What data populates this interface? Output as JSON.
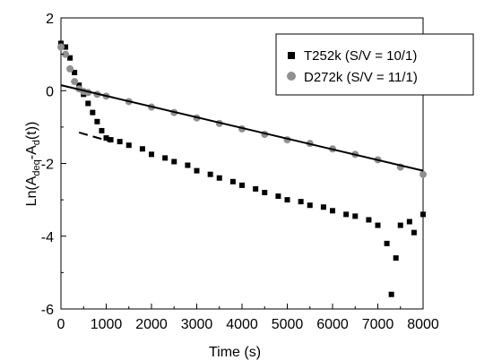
{
  "chart_data": {
    "type": "scatter",
    "xlabel": "Time (s)",
    "ylabel": {
      "prefix": "Ln(A",
      "sub1": "deq",
      "mid": "-A",
      "sub2": "d",
      "suffix": "(t))"
    },
    "xlim": [
      0,
      8000
    ],
    "ylim": [
      -6,
      2
    ],
    "x_ticks": [
      "0",
      "1000",
      "2000",
      "3000",
      "4000",
      "5000",
      "6000",
      "7000",
      "8000"
    ],
    "y_ticks": [
      "-6",
      "-4",
      "-2",
      "0",
      "2"
    ],
    "grid": false,
    "legend_position": "top-right",
    "series": [
      {
        "name": "T252k (S/V = 10/1)",
        "color": "#000000",
        "marker": "square",
        "x": [
          0,
          100,
          200,
          300,
          400,
          500,
          600,
          700,
          800,
          900,
          1000,
          1100,
          1300,
          1500,
          1800,
          2000,
          2300,
          2500,
          2800,
          3000,
          3300,
          3500,
          3800,
          4000,
          4300,
          4500,
          4800,
          5000,
          5300,
          5500,
          5800,
          6000,
          6300,
          6500,
          6800,
          7000,
          7200,
          7300,
          7400,
          7500,
          7700,
          7800,
          8000
        ],
        "y": [
          1.3,
          1.2,
          0.9,
          0.5,
          0.15,
          -0.1,
          -0.35,
          -0.6,
          -0.85,
          -1.1,
          -1.3,
          -1.35,
          -1.4,
          -1.5,
          -1.6,
          -1.75,
          -1.85,
          -1.95,
          -2.05,
          -2.2,
          -2.3,
          -2.4,
          -2.5,
          -2.6,
          -2.7,
          -2.8,
          -2.9,
          -3.0,
          -3.05,
          -3.15,
          -3.2,
          -3.3,
          -3.4,
          -3.45,
          -3.55,
          -3.7,
          -4.2,
          -5.6,
          -4.6,
          -3.7,
          -3.6,
          -3.9,
          -3.4
        ]
      },
      {
        "name": "D272k (S/V = 11/1)",
        "color": "#909090",
        "marker": "circle",
        "x": [
          0,
          100,
          200,
          300,
          400,
          500,
          600,
          800,
          1000,
          1500,
          2000,
          2500,
          3000,
          3500,
          4000,
          4500,
          5000,
          5500,
          6000,
          6500,
          7000,
          7500,
          8000
        ],
        "y": [
          1.2,
          1.0,
          0.6,
          0.25,
          0.05,
          -0.02,
          -0.05,
          -0.1,
          -0.15,
          -0.3,
          -0.45,
          -0.6,
          -0.75,
          -0.9,
          -1.05,
          -1.2,
          -1.35,
          -1.45,
          -1.6,
          -1.75,
          -1.9,
          -2.1,
          -2.3
        ]
      }
    ],
    "fit_lines": [
      {
        "x": [
          0,
          8000
        ],
        "y": [
          0.15,
          -2.2
        ],
        "color": "#000000",
        "dash": "solid"
      },
      {
        "x": [
          400,
          1100
        ],
        "y": [
          -1.15,
          -1.4
        ],
        "color": "#000000",
        "dash": "dashed"
      }
    ]
  }
}
